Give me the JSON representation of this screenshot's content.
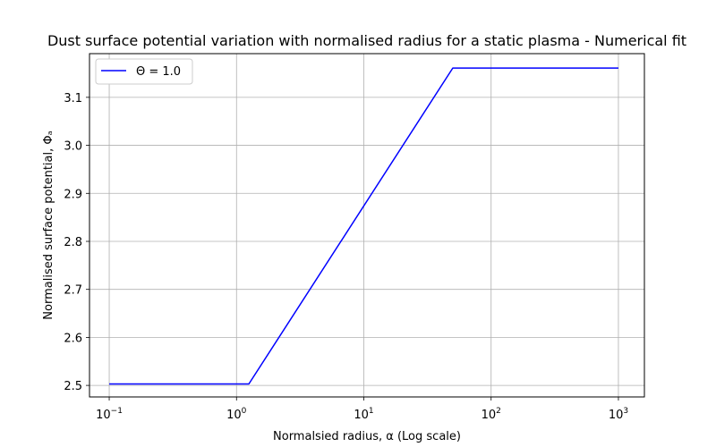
{
  "chart_data": {
    "type": "line",
    "title": "Dust surface potential variation with normalised radius for a static plasma - Numerical fit",
    "xlabel": "Normalsied radius, α (Log scale)",
    "ylabel": "Normalised surface potential, Φₐ",
    "xscale": "log",
    "xlim": [
      0.07,
      1600
    ],
    "ylim": [
      2.476,
      3.191
    ],
    "grid": true,
    "legend_position": "top-left",
    "x_ticks": [
      {
        "value": 0.1,
        "base": "10",
        "exp": "−1"
      },
      {
        "value": 1,
        "base": "10",
        "exp": "0"
      },
      {
        "value": 10,
        "base": "10",
        "exp": "1"
      },
      {
        "value": 100,
        "base": "10",
        "exp": "2"
      },
      {
        "value": 1000,
        "base": "10",
        "exp": "3"
      }
    ],
    "y_ticks": [
      {
        "value": 2.5,
        "label": "2.5"
      },
      {
        "value": 2.6,
        "label": "2.6"
      },
      {
        "value": 2.7,
        "label": "2.7"
      },
      {
        "value": 2.8,
        "label": "2.8"
      },
      {
        "value": 2.9,
        "label": "2.9"
      },
      {
        "value": 3.0,
        "label": "3.0"
      },
      {
        "value": 3.1,
        "label": "3.1"
      }
    ],
    "series": [
      {
        "name": "Θ = 1.0",
        "color": "#0000ff",
        "x": [
          0.1,
          1.25,
          50,
          1000
        ],
        "y": [
          2.503,
          2.503,
          3.161,
          3.161
        ]
      }
    ]
  }
}
